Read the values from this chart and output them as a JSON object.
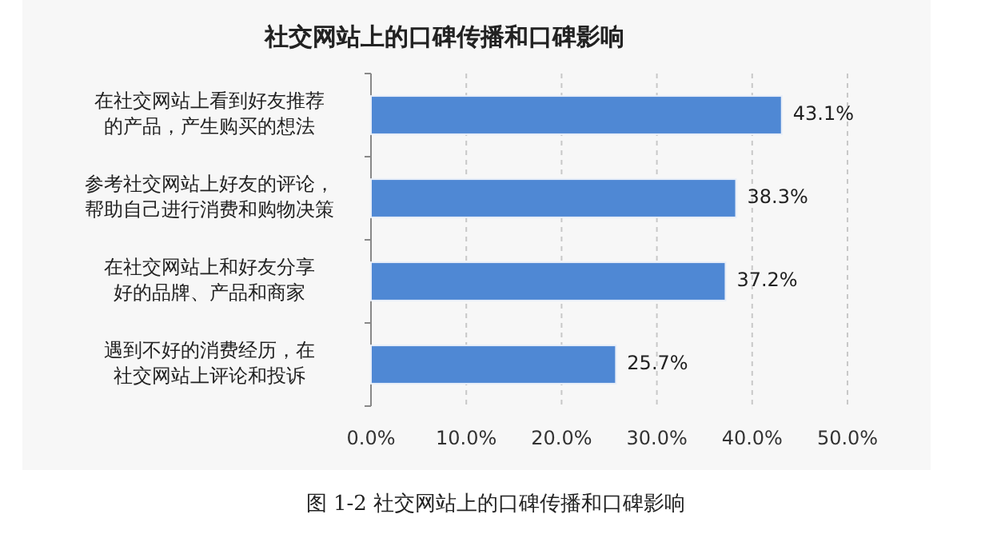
{
  "chart_data": {
    "type": "bar",
    "orientation": "horizontal",
    "title": "社交网站上的口碑传播和口碑影响",
    "categories": [
      "在社交网站上看到好友推荐的产品，产生购买的想法",
      "参考社交网站上好友的评论，帮助自己进行消费和购物决策",
      "在社交网站上和好友分享好的品牌、产品和商家",
      "遇到不好的消费经历，在社交网站上评论和投诉"
    ],
    "values": [
      43.1,
      38.3,
      37.2,
      25.7
    ],
    "value_labels": [
      "43.1%",
      "38.3%",
      "37.2%",
      "25.7%"
    ],
    "color": "#4f88d4",
    "xlim": [
      0,
      50
    ],
    "xticks": [
      {
        "value": 0,
        "label": "0.0%"
      },
      {
        "value": 10,
        "label": "10.0%"
      },
      {
        "value": 20,
        "label": "20.0%"
      },
      {
        "value": 30,
        "label": "30.0%"
      },
      {
        "value": 40,
        "label": "40.0%"
      },
      {
        "value": 50,
        "label": "50.0%"
      }
    ],
    "grid": "x",
    "annotations": [
      "图 1-2  社交网站上的口碑传播和口碑影响"
    ]
  }
}
